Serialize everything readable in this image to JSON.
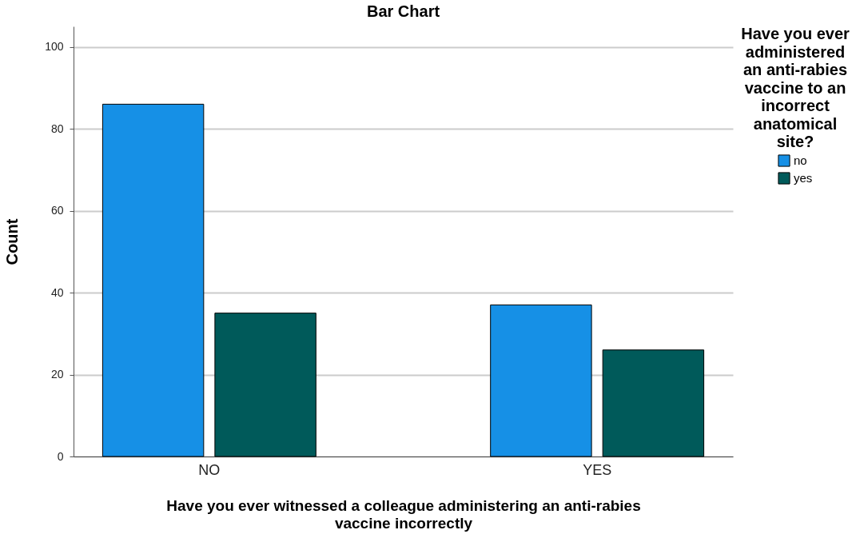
{
  "chart_data": {
    "type": "bar",
    "title": "Bar Chart",
    "xlabel": "Have you ever witnessed a colleague administering an anti-rabies vaccine incorrectly",
    "ylabel": "Count",
    "legend_title": "Have you ever administered an anti-rabies vaccine to an incorrect anatomical site?",
    "categories": [
      "NO",
      "YES"
    ],
    "series": [
      {
        "name": "no",
        "color": "#1690e6",
        "values": [
          86,
          37
        ]
      },
      {
        "name": "yes",
        "color": "#005a5a",
        "values": [
          35,
          26
        ]
      }
    ],
    "ylim": [
      0,
      105
    ],
    "yticks": [
      0,
      20,
      40,
      60,
      80,
      100
    ],
    "grid": "y",
    "legend": "top right"
  }
}
